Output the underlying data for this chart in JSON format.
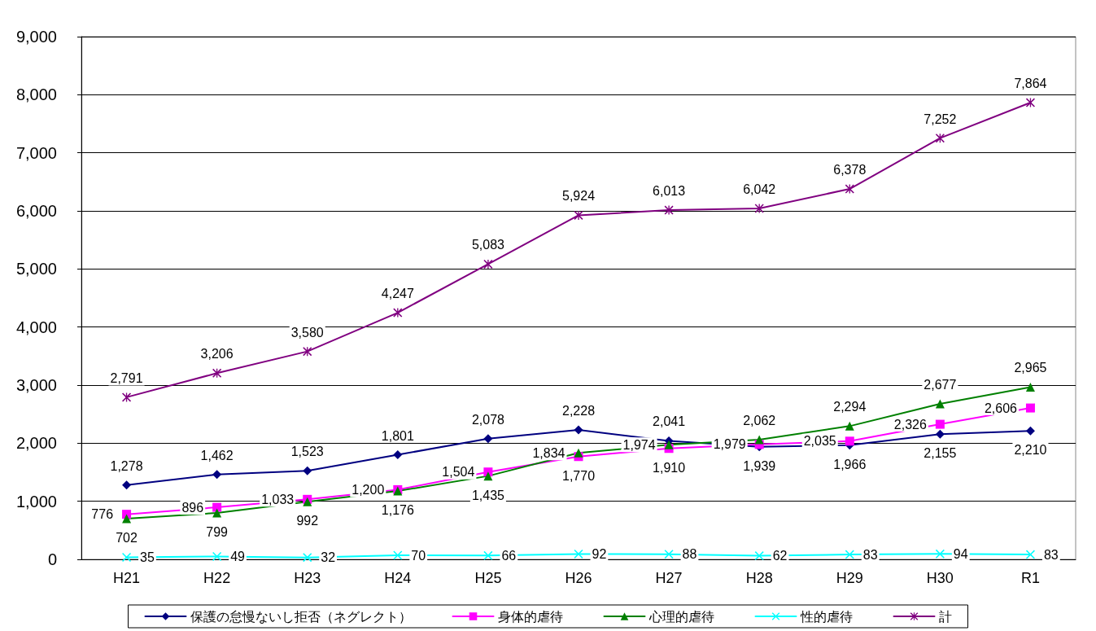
{
  "chart_data": {
    "type": "line",
    "categories": [
      "H21",
      "H22",
      "H23",
      "H24",
      "H25",
      "H26",
      "H27",
      "H28",
      "H29",
      "H30",
      "R1"
    ],
    "series": [
      {
        "name": "保護の怠慢ないし拒否（ネグレクト）",
        "color": "#000080",
        "marker": "diamond",
        "values": [
          1278,
          1462,
          1523,
          1801,
          2078,
          2228,
          2041,
          1939,
          1966,
          2155,
          2210
        ],
        "value_labels": [
          "1,278",
          "1,462",
          "1,523",
          "1,801",
          "2,078",
          "2,228",
          "2,041",
          "1,939",
          "1,966",
          "2,155",
          "2,210"
        ]
      },
      {
        "name": "身体的虐待",
        "color": "#ff00ff",
        "marker": "square",
        "values": [
          776,
          896,
          1033,
          1200,
          1504,
          1770,
          1910,
          1979,
          2035,
          2326,
          2606
        ],
        "value_labels": [
          "776",
          "896",
          "1,033",
          "1,200",
          "1,504",
          "1,770",
          "1,910",
          "1,979",
          "2,035",
          "2,326",
          "2,606"
        ]
      },
      {
        "name": "心理的虐待",
        "color": "#008000",
        "marker": "triangle",
        "values": [
          702,
          799,
          992,
          1176,
          1435,
          1834,
          1974,
          2062,
          2294,
          2677,
          2965
        ],
        "value_labels": [
          "702",
          "799",
          "992",
          "1,176",
          "1,435",
          "1,834",
          "1,974",
          "2,062",
          "2,294",
          "2,677",
          "2,965"
        ]
      },
      {
        "name": "性的虐待",
        "color": "#00ffff",
        "marker": "cross",
        "values": [
          35,
          49,
          32,
          70,
          66,
          92,
          88,
          62,
          83,
          94,
          83
        ],
        "value_labels": [
          "35",
          "49",
          "32",
          "70",
          "66",
          "92",
          "88",
          "62",
          "83",
          "94",
          "83"
        ]
      },
      {
        "name": "計",
        "color": "#800080",
        "marker": "star",
        "values": [
          2791,
          3206,
          3580,
          4247,
          5083,
          5924,
          6013,
          6042,
          6378,
          7252,
          7864
        ],
        "value_labels": [
          "2,791",
          "3,206",
          "3,580",
          "4,247",
          "5,083",
          "5,924",
          "6,013",
          "6,042",
          "6,378",
          "7,252",
          "7,864"
        ]
      }
    ],
    "ylim": [
      0,
      9000
    ],
    "yticks": [
      {
        "value": 0,
        "label": "0"
      },
      {
        "value": 1000,
        "label": "1,000"
      },
      {
        "value": 2000,
        "label": "2,000"
      },
      {
        "value": 3000,
        "label": "3,000"
      },
      {
        "value": 4000,
        "label": "4,000"
      },
      {
        "value": 5000,
        "label": "5,000"
      },
      {
        "value": 6000,
        "label": "6,000"
      },
      {
        "value": 7000,
        "label": "7,000"
      },
      {
        "value": 8000,
        "label": "8,000"
      },
      {
        "value": 9000,
        "label": "9,000"
      }
    ],
    "grid": "y",
    "legend": "bottom"
  }
}
